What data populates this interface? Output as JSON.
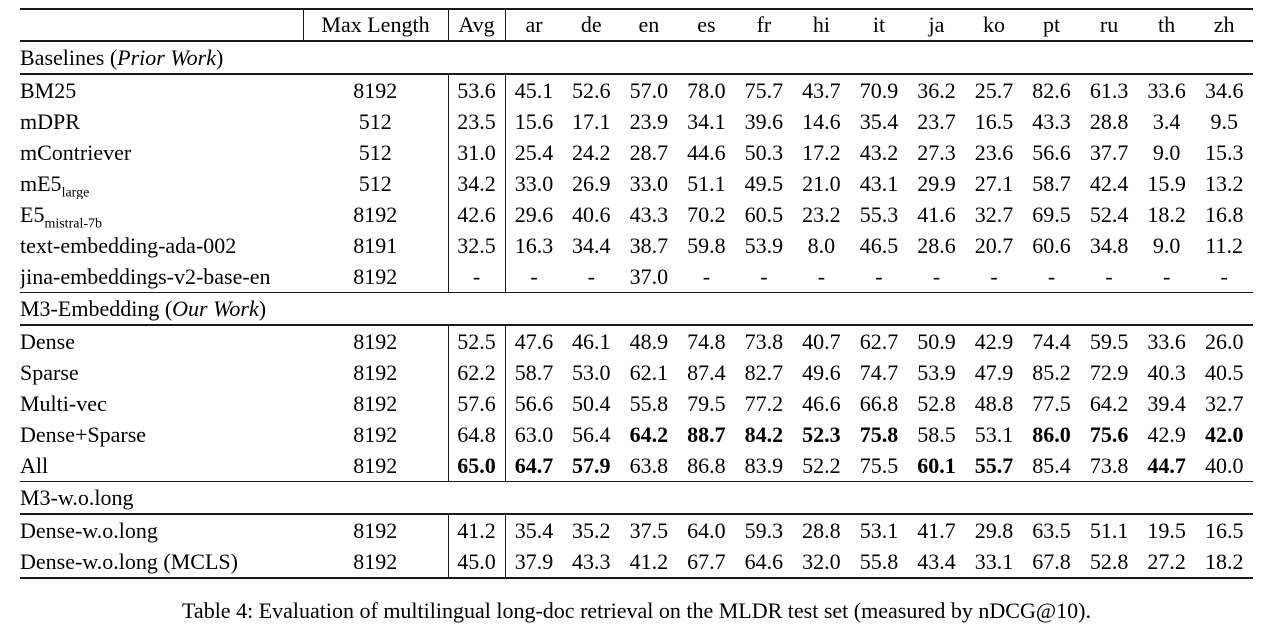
{
  "table": {
    "header": {
      "columns": [
        "Max Length",
        "Avg",
        "ar",
        "de",
        "en",
        "es",
        "fr",
        "hi",
        "it",
        "ja",
        "ko",
        "pt",
        "ru",
        "th",
        "zh"
      ]
    },
    "sections": [
      {
        "title_pre": "Baselines (",
        "title_italic": "Prior Work",
        "title_post": ")",
        "rows": [
          {
            "name": "BM25",
            "sub": "",
            "max_length": "8192",
            "values": [
              "53.6",
              "45.1",
              "52.6",
              "57.0",
              "78.0",
              "75.7",
              "43.7",
              "70.9",
              "36.2",
              "25.7",
              "82.6",
              "61.3",
              "33.6",
              "34.6"
            ],
            "bold": []
          },
          {
            "name": "mDPR",
            "sub": "",
            "max_length": "512",
            "values": [
              "23.5",
              "15.6",
              "17.1",
              "23.9",
              "34.1",
              "39.6",
              "14.6",
              "35.4",
              "23.7",
              "16.5",
              "43.3",
              "28.8",
              "3.4",
              "9.5"
            ],
            "bold": []
          },
          {
            "name": "mContriever",
            "sub": "",
            "max_length": "512",
            "values": [
              "31.0",
              "25.4",
              "24.2",
              "28.7",
              "44.6",
              "50.3",
              "17.2",
              "43.2",
              "27.3",
              "23.6",
              "56.6",
              "37.7",
              "9.0",
              "15.3"
            ],
            "bold": []
          },
          {
            "name": "mE5",
            "sub": "large",
            "max_length": "512",
            "values": [
              "34.2",
              "33.0",
              "26.9",
              "33.0",
              "51.1",
              "49.5",
              "21.0",
              "43.1",
              "29.9",
              "27.1",
              "58.7",
              "42.4",
              "15.9",
              "13.2"
            ],
            "bold": []
          },
          {
            "name": "E5",
            "sub": "mistral-7b",
            "max_length": "8192",
            "values": [
              "42.6",
              "29.6",
              "40.6",
              "43.3",
              "70.2",
              "60.5",
              "23.2",
              "55.3",
              "41.6",
              "32.7",
              "69.5",
              "52.4",
              "18.2",
              "16.8"
            ],
            "bold": []
          },
          {
            "name": "text-embedding-ada-002",
            "sub": "",
            "max_length": "8191",
            "values": [
              "32.5",
              "16.3",
              "34.4",
              "38.7",
              "59.8",
              "53.9",
              "8.0",
              "46.5",
              "28.6",
              "20.7",
              "60.6",
              "34.8",
              "9.0",
              "11.2"
            ],
            "bold": []
          },
          {
            "name": "jina-embeddings-v2-base-en",
            "sub": "",
            "max_length": "8192",
            "values": [
              "-",
              "-",
              "-",
              "37.0",
              "-",
              "-",
              "-",
              "-",
              "-",
              "-",
              "-",
              "-",
              "-",
              "-"
            ],
            "bold": []
          }
        ]
      },
      {
        "title_pre": "M3-Embedding (",
        "title_italic": "Our Work",
        "title_post": ")",
        "rows": [
          {
            "name": "Dense",
            "sub": "",
            "max_length": "8192",
            "values": [
              "52.5",
              "47.6",
              "46.1",
              "48.9",
              "74.8",
              "73.8",
              "40.7",
              "62.7",
              "50.9",
              "42.9",
              "74.4",
              "59.5",
              "33.6",
              "26.0"
            ],
            "bold": []
          },
          {
            "name": "Sparse",
            "sub": "",
            "max_length": "8192",
            "values": [
              "62.2",
              "58.7",
              "53.0",
              "62.1",
              "87.4",
              "82.7",
              "49.6",
              "74.7",
              "53.9",
              "47.9",
              "85.2",
              "72.9",
              "40.3",
              "40.5"
            ],
            "bold": []
          },
          {
            "name": "Multi-vec",
            "sub": "",
            "max_length": "8192",
            "values": [
              "57.6",
              "56.6",
              "50.4",
              "55.8",
              "79.5",
              "77.2",
              "46.6",
              "66.8",
              "52.8",
              "48.8",
              "77.5",
              "64.2",
              "39.4",
              "32.7"
            ],
            "bold": []
          },
          {
            "name": "Dense+Sparse",
            "sub": "",
            "max_length": "8192",
            "values": [
              "64.8",
              "63.0",
              "56.4",
              "64.2",
              "88.7",
              "84.2",
              "52.3",
              "75.8",
              "58.5",
              "53.1",
              "86.0",
              "75.6",
              "42.9",
              "42.0"
            ],
            "bold": [
              3,
              4,
              5,
              6,
              7,
              10,
              11,
              13
            ]
          },
          {
            "name": "All",
            "sub": "",
            "max_length": "8192",
            "values": [
              "65.0",
              "64.7",
              "57.9",
              "63.8",
              "86.8",
              "83.9",
              "52.2",
              "75.5",
              "60.1",
              "55.7",
              "85.4",
              "73.8",
              "44.7",
              "40.0"
            ],
            "bold": [
              0,
              1,
              2,
              8,
              9,
              12
            ]
          }
        ]
      },
      {
        "title_pre": "M3-w.o.long",
        "title_italic": "",
        "title_post": "",
        "rows": [
          {
            "name": "Dense-w.o.long",
            "sub": "",
            "max_length": "8192",
            "values": [
              "41.2",
              "35.4",
              "35.2",
              "37.5",
              "64.0",
              "59.3",
              "28.8",
              "53.1",
              "41.7",
              "29.8",
              "63.5",
              "51.1",
              "19.5",
              "16.5"
            ],
            "bold": []
          },
          {
            "name": "Dense-w.o.long (MCLS)",
            "sub": "",
            "max_length": "8192",
            "values": [
              "45.0",
              "37.9",
              "43.3",
              "41.2",
              "67.7",
              "64.6",
              "32.0",
              "55.8",
              "43.4",
              "33.1",
              "67.8",
              "52.8",
              "27.2",
              "18.2"
            ],
            "bold": []
          }
        ]
      }
    ]
  },
  "caption": "Table 4: Evaluation of multilingual long-doc retrieval on the MLDR test set (measured by nDCG@10)."
}
